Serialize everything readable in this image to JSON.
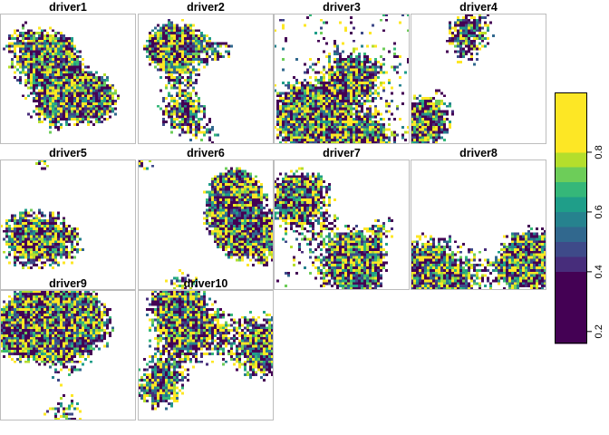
{
  "chart_data": {
    "type": "heatmap",
    "layout": "4 columns × 3 rows of raster panels, shared legend on the right",
    "grid_cells": "approximately 50 × 50 per panel",
    "missing_cells": "white (NA background)",
    "palette": [
      "#440154",
      "#482878",
      "#3E4A89",
      "#31688E",
      "#26828E",
      "#1F9E89",
      "#35B779",
      "#6DCD59",
      "#B4DE2C",
      "#FDE725"
    ],
    "legend": {
      "placement": "right",
      "ticks": [
        "0.2",
        "0.4",
        "0.6",
        "0.8"
      ],
      "range": [
        0.16,
        1.0
      ],
      "bins": [
        {
          "from": 0.16,
          "to": 0.4,
          "color": "#440154"
        },
        {
          "from": 0.4,
          "to": 0.45,
          "color": "#472D7B"
        },
        {
          "from": 0.45,
          "to": 0.5,
          "color": "#3E4A89"
        },
        {
          "from": 0.5,
          "to": 0.55,
          "color": "#31688E"
        },
        {
          "from": 0.55,
          "to": 0.6,
          "color": "#26828E"
        },
        {
          "from": 0.6,
          "to": 0.65,
          "color": "#1F9E89"
        },
        {
          "from": 0.65,
          "to": 0.7,
          "color": "#35B779"
        },
        {
          "from": 0.7,
          "to": 0.75,
          "color": "#6DCD59"
        },
        {
          "from": 0.75,
          "to": 0.8,
          "color": "#B4DE2C"
        },
        {
          "from": 0.8,
          "to": 1.0,
          "color": "#FDE725"
        }
      ]
    },
    "panels": [
      {
        "name": "driver1",
        "coverage": 0.38
      },
      {
        "name": "driver2",
        "coverage": 0.26
      },
      {
        "name": "driver3",
        "coverage": 0.48
      },
      {
        "name": "driver4",
        "coverage": 0.16
      },
      {
        "name": "driver5",
        "coverage": 0.18
      },
      {
        "name": "driver6",
        "coverage": 0.3
      },
      {
        "name": "driver7",
        "coverage": 0.38
      },
      {
        "name": "driver8",
        "coverage": 0.32
      },
      {
        "name": "driver9",
        "coverage": 0.42
      },
      {
        "name": "driver10",
        "coverage": 0.46
      }
    ]
  }
}
